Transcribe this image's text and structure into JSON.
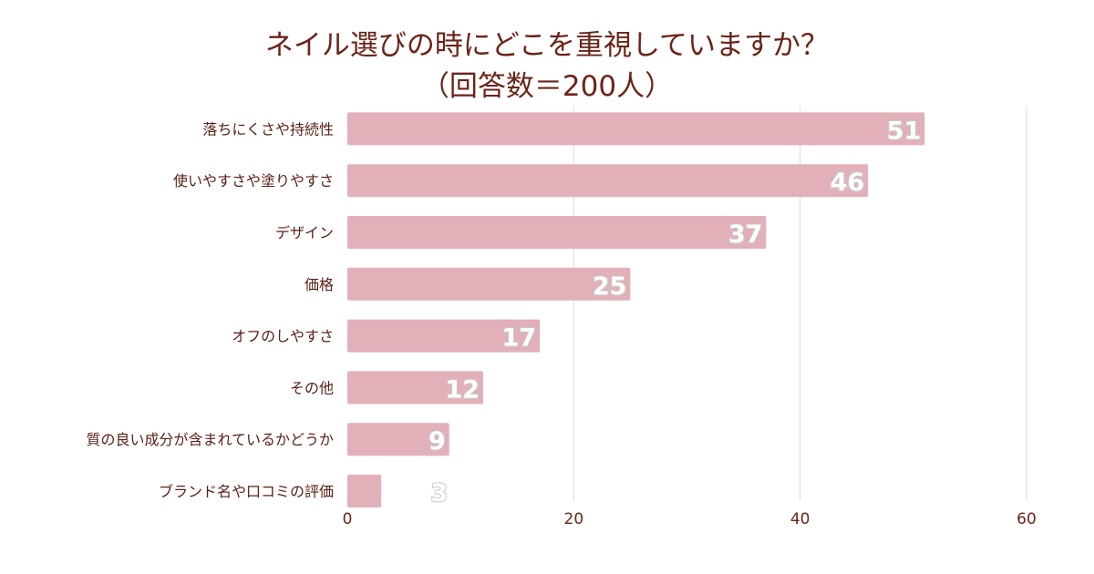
{
  "chart_data": {
    "type": "bar",
    "orientation": "horizontal",
    "title": "ネイル選びの時にどこを重視していますか？",
    "subtitle": "（回答数＝200人）",
    "categories": [
      "落ちにくさや持続性",
      "使いやすさや塗りやすさ",
      "デザイン",
      "価格",
      "オフのしやすさ",
      "その他",
      "質の良い成分が含まれているかどうか",
      "ブランド名や口コミの評価"
    ],
    "values": [
      51,
      46,
      37,
      25,
      17,
      12,
      9,
      3
    ],
    "data_labels": [
      "51",
      "46",
      "37",
      "25",
      "17",
      "12",
      "9",
      "3"
    ],
    "x_ticks": [
      "0",
      "20",
      "40",
      "60"
    ],
    "xlim": [
      0,
      60
    ],
    "xlabel": "",
    "ylabel": "",
    "grid": true,
    "legend": "none",
    "colors": {
      "bar": "#e2b0b8",
      "title": "#6b2418",
      "grid": "#dcdcdc"
    }
  }
}
